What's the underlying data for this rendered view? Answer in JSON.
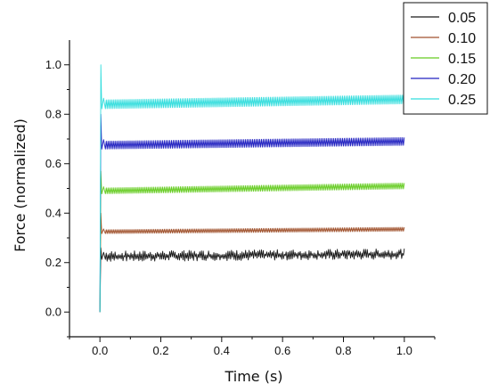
{
  "chart_data": {
    "type": "line",
    "title": "",
    "xlabel": "Time (s)",
    "ylabel": "Force (normalized)",
    "xlim": [
      -0.1,
      1.1
    ],
    "ylim": [
      -0.1,
      1.1
    ],
    "xticks": [
      0.0,
      0.2,
      0.4,
      0.6,
      0.8,
      1.0
    ],
    "xtick_labels": [
      "0.0",
      "0.2",
      "0.4",
      "0.6",
      "0.8",
      "1.0"
    ],
    "yticks": [
      0.0,
      0.2,
      0.4,
      0.6,
      0.8,
      1.0
    ],
    "ytick_labels": [
      "0.0",
      "0.2",
      "0.4",
      "0.6",
      "0.8",
      "1.0"
    ],
    "grid": false,
    "legend_position": "top-right",
    "series": [
      {
        "name": "0.05",
        "color": "#1a1a1a",
        "peak": 0.26,
        "start": 0.225,
        "end": 0.235,
        "amplitude": 0.012
      },
      {
        "name": "0.10",
        "color": "#a0522d",
        "peak": 0.4,
        "start": 0.325,
        "end": 0.335,
        "amplitude": 0.008
      },
      {
        "name": "0.15",
        "color": "#66cc22",
        "peak": 0.57,
        "start": 0.49,
        "end": 0.51,
        "amplitude": 0.012
      },
      {
        "name": "0.20",
        "color": "#2020c0",
        "peak": 0.8,
        "start": 0.675,
        "end": 0.69,
        "amplitude": 0.016
      },
      {
        "name": "0.25",
        "color": "#33dddd",
        "peak": 1.0,
        "start": 0.84,
        "end": 0.86,
        "amplitude": 0.018
      }
    ]
  }
}
